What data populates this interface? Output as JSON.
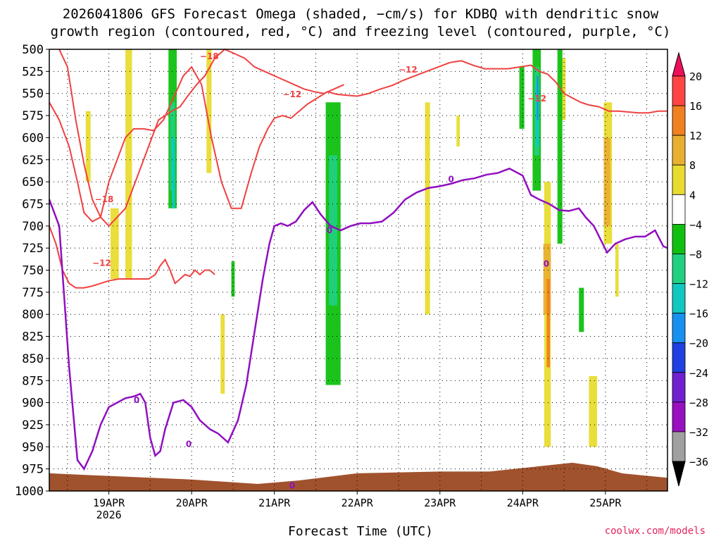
{
  "title_lines": [
    "2026041806 GFS Forecast Omega (shaded, −cm/s) for KDBQ with dendritic snow",
    "growth region (contoured, red, °C) and freezing level (contoured, purple, °C)"
  ],
  "xlabel": "Forecast Time (UTC)",
  "credit": "coolwx.com/models",
  "chart_data": {
    "type": "heatmap",
    "x": {
      "ticks": [
        "19APR",
        "20APR",
        "21APR",
        "22APR",
        "23APR",
        "24APR",
        "25APR"
      ],
      "tick_days": [
        19,
        20,
        21,
        22,
        23,
        24,
        25
      ],
      "sub_label": "2026",
      "range_days": [
        18.28,
        25.75
      ]
    },
    "y": {
      "ticks": [
        500,
        525,
        550,
        575,
        600,
        625,
        650,
        675,
        700,
        725,
        750,
        775,
        800,
        825,
        850,
        875,
        900,
        925,
        950,
        975,
        1000
      ],
      "range": [
        500,
        1000
      ]
    },
    "grid": true,
    "colorbar": {
      "labels": [
        "20",
        "16",
        "12",
        "8",
        "4",
        "−4",
        "−8",
        "−12",
        "−16",
        "−20",
        "−24",
        "−28",
        "−32",
        "−36"
      ],
      "colors": [
        "#f0105a",
        "#ff4444",
        "#f08020",
        "#e8b030",
        "#e8dc30",
        "#ffffff",
        "#10c010",
        "#20d080",
        "#10c8c0",
        "#1890f0",
        "#2040e0",
        "#7020d0",
        "#9810c0",
        "#a0a0a0",
        "#000000"
      ]
    },
    "colors": {
      "snow_growth": "#f04040",
      "freezing": "#9010c0",
      "ground": "#a0522d"
    },
    "contour_labels": [
      {
        "text": "−18",
        "day": 18.83,
        "p": 670,
        "color": "red"
      },
      {
        "text": "−12",
        "day": 18.8,
        "p": 742,
        "color": "red"
      },
      {
        "text": "−18",
        "day": 20.1,
        "p": 508,
        "color": "red"
      },
      {
        "text": "−12",
        "day": 21.1,
        "p": 551,
        "color": "red"
      },
      {
        "text": "−12",
        "day": 22.5,
        "p": 523,
        "color": "red"
      },
      {
        "text": "−12",
        "day": 24.06,
        "p": 556,
        "color": "red"
      },
      {
        "text": "0",
        "day": 19.3,
        "p": 897,
        "color": "purple"
      },
      {
        "text": "0",
        "day": 19.93,
        "p": 947,
        "color": "purple"
      },
      {
        "text": "0",
        "day": 21.63,
        "p": 705,
        "color": "purple"
      },
      {
        "text": "0",
        "day": 23.1,
        "p": 647,
        "color": "purple"
      },
      {
        "text": "0",
        "day": 24.25,
        "p": 743,
        "color": "purple"
      },
      {
        "text": "0",
        "day": 21.18,
        "p": 994,
        "color": "purple"
      }
    ],
    "freezing_level": {
      "day": [
        18.28,
        18.4,
        18.52,
        18.62,
        18.7,
        18.8,
        18.9,
        19.0,
        19.1,
        19.2,
        19.3,
        19.38,
        19.44,
        19.5,
        19.56,
        19.62,
        19.68,
        19.78,
        19.9,
        20.0,
        20.1,
        20.22,
        20.32,
        20.44,
        20.56,
        20.66,
        20.76,
        20.86,
        20.94,
        21.0,
        21.08,
        21.16,
        21.26,
        21.36,
        21.46,
        21.56,
        21.68,
        21.8,
        21.92,
        22.04,
        22.16,
        22.3,
        22.44,
        22.58,
        22.72,
        22.86,
        23.0,
        23.14,
        23.28,
        23.42,
        23.56,
        23.7,
        23.84,
        24.0,
        24.1,
        24.2,
        24.32,
        24.44,
        24.56,
        24.68,
        24.76,
        24.86,
        24.94,
        25.02,
        25.12,
        25.24,
        25.36,
        25.48,
        25.6,
        25.7,
        25.75
      ],
      "p": [
        670,
        700,
        860,
        965,
        975,
        955,
        925,
        905,
        900,
        895,
        893,
        890,
        900,
        940,
        960,
        955,
        930,
        900,
        897,
        905,
        920,
        930,
        935,
        945,
        920,
        880,
        820,
        760,
        720,
        700,
        697,
        700,
        695,
        682,
        673,
        687,
        700,
        705,
        700,
        697,
        697,
        695,
        685,
        670,
        662,
        657,
        655,
        652,
        648,
        646,
        642,
        640,
        635,
        643,
        665,
        670,
        675,
        682,
        683,
        680,
        690,
        700,
        715,
        730,
        720,
        715,
        712,
        712,
        705,
        723,
        725
      ]
    },
    "snow_growth_minus12_upper": {
      "day": [
        18.28,
        18.4,
        18.52,
        18.62,
        18.7,
        18.8,
        18.9,
        19.0,
        19.1,
        19.2,
        19.3,
        19.42,
        19.54,
        19.66,
        19.78,
        19.9,
        20.0,
        20.12,
        20.24,
        20.36,
        20.48,
        20.6,
        20.72,
        20.82,
        20.92,
        21.0,
        21.1,
        21.2,
        21.3,
        21.4,
        21.52,
        21.64,
        21.76,
        21.88,
        22.0,
        22.14,
        22.28,
        22.42,
        22.56,
        22.7,
        22.84,
        22.98,
        23.12,
        23.26,
        23.4,
        23.54,
        23.68,
        23.82,
        23.96,
        24.1,
        24.2,
        24.3,
        24.4,
        24.5,
        24.6,
        24.7,
        24.8,
        24.92,
        25.04,
        25.16,
        25.28,
        25.4,
        25.52,
        25.64,
        25.75
      ],
      "p": [
        560,
        580,
        610,
        650,
        685,
        695,
        690,
        650,
        625,
        600,
        590,
        590,
        592,
        580,
        555,
        530,
        520,
        540,
        600,
        650,
        680,
        680,
        640,
        610,
        590,
        578,
        575,
        578,
        570,
        562,
        555,
        548,
        551,
        552,
        553,
        550,
        545,
        541,
        535,
        530,
        525,
        520,
        515,
        513,
        518,
        522,
        522,
        522,
        520,
        518,
        525,
        528,
        537,
        550,
        555,
        560,
        563,
        565,
        570,
        570,
        571,
        572,
        572,
        570,
        570
      ]
    },
    "snow_growth_minus18": {
      "day": [
        18.4,
        18.5,
        18.6,
        18.7,
        18.8,
        18.9,
        19.0,
        19.1,
        19.2,
        19.28,
        19.36,
        19.44,
        19.52,
        19.6,
        19.68,
        19.76,
        19.86,
        19.96,
        20.06,
        20.16,
        20.28,
        20.4,
        20.52,
        20.64,
        20.76,
        20.88,
        21.0,
        21.12,
        21.24,
        21.36,
        21.48,
        21.6,
        21.72,
        21.84
      ],
      "p": [
        500,
        520,
        580,
        630,
        670,
        690,
        700,
        690,
        680,
        660,
        640,
        620,
        600,
        580,
        575,
        570,
        565,
        552,
        540,
        530,
        510,
        500,
        505,
        510,
        520,
        525,
        530,
        535,
        540,
        545,
        548,
        550,
        545,
        540
      ]
    },
    "snow_growth_minus12_lower": {
      "day": [
        18.28,
        18.36,
        18.44,
        18.52,
        18.6,
        18.7,
        18.8,
        18.9,
        19.0,
        19.12,
        19.24,
        19.36,
        19.48,
        19.56,
        19.62,
        19.68,
        19.74,
        19.8,
        19.86,
        19.92,
        19.98,
        20.04,
        20.1,
        20.16,
        20.22,
        20.28
      ],
      "p": [
        700,
        720,
        750,
        765,
        770,
        770,
        768,
        765,
        762,
        760,
        760,
        760,
        760,
        755,
        745,
        738,
        750,
        765,
        760,
        755,
        757,
        750,
        755,
        750,
        750,
        755
      ]
    },
    "ground_surface": {
      "day": [
        18.28,
        19.0,
        20.0,
        20.8,
        21.3,
        22.0,
        23.0,
        23.6,
        24.2,
        24.6,
        24.9,
        25.2,
        25.75
      ],
      "p": [
        980,
        983,
        987,
        992,
        988,
        980,
        978,
        978,
        972,
        968,
        972,
        980,
        985
      ]
    },
    "shaded_regions": [
      {
        "value": 4,
        "day": [
          18.72,
          18.78
        ],
        "p": [
          570,
          650
        ]
      },
      {
        "value": 4,
        "day": [
          19.02,
          19.12
        ],
        "p": [
          680,
          760
        ]
      },
      {
        "value": 4,
        "day": [
          19.2,
          19.28
        ],
        "p": [
          500,
          760
        ]
      },
      {
        "value": 4,
        "day": [
          20.18,
          20.24
        ],
        "p": [
          500,
          640
        ]
      },
      {
        "value": 4,
        "day": [
          20.35,
          20.4
        ],
        "p": [
          800,
          890
        ]
      },
      {
        "value": 4,
        "day": [
          22.82,
          22.88
        ],
        "p": [
          560,
          800
        ]
      },
      {
        "value": 4,
        "day": [
          23.2,
          23.24
        ],
        "p": [
          575,
          610
        ]
      },
      {
        "value": 4,
        "day": [
          24.45,
          24.52
        ],
        "p": [
          510,
          580
        ]
      },
      {
        "value": 4,
        "day": [
          24.98,
          25.08
        ],
        "p": [
          560,
          720
        ]
      },
      {
        "value": 4,
        "day": [
          24.8,
          24.9
        ],
        "p": [
          870,
          950
        ]
      },
      {
        "value": 4,
        "day": [
          24.26,
          24.34
        ],
        "p": [
          650,
          950
        ]
      },
      {
        "value": 4,
        "day": [
          25.12,
          25.16
        ],
        "p": [
          720,
          780
        ]
      },
      {
        "value": 8,
        "day": [
          24.25,
          24.34
        ],
        "p": [
          720,
          800
        ]
      },
      {
        "value": 8,
        "day": [
          24.98,
          25.06
        ],
        "p": [
          600,
          700
        ]
      },
      {
        "value": 12,
        "day": [
          24.29,
          24.33
        ],
        "p": [
          760,
          860
        ]
      },
      {
        "value": -4,
        "day": [
          19.72,
          19.82
        ],
        "p": [
          500,
          680
        ]
      },
      {
        "value": -4,
        "day": [
          20.48,
          20.52
        ],
        "p": [
          740,
          780
        ]
      },
      {
        "value": -4,
        "day": [
          21.62,
          21.8
        ],
        "p": [
          560,
          880
        ]
      },
      {
        "value": -4,
        "day": [
          24.12,
          24.22
        ],
        "p": [
          500,
          660
        ]
      },
      {
        "value": -4,
        "day": [
          24.42,
          24.48
        ],
        "p": [
          500,
          720
        ]
      },
      {
        "value": -4,
        "day": [
          24.68,
          24.74
        ],
        "p": [
          770,
          820
        ]
      },
      {
        "value": -4,
        "day": [
          23.96,
          24.02
        ],
        "p": [
          520,
          590
        ]
      },
      {
        "value": -8,
        "day": [
          19.74,
          19.8
        ],
        "p": [
          560,
          660
        ]
      },
      {
        "value": -8,
        "day": [
          21.66,
          21.76
        ],
        "p": [
          620,
          790
        ]
      },
      {
        "value": -8,
        "day": [
          24.14,
          24.2
        ],
        "p": [
          520,
          620
        ]
      },
      {
        "value": -12,
        "day": [
          19.76,
          19.8
        ],
        "p": [
          600,
          680
        ]
      },
      {
        "value": -12,
        "day": [
          24.16,
          24.2
        ],
        "p": [
          540,
          610
        ]
      },
      {
        "value": -16,
        "day": [
          24.17,
          24.19
        ],
        "p": [
          530,
          580
        ]
      }
    ]
  }
}
